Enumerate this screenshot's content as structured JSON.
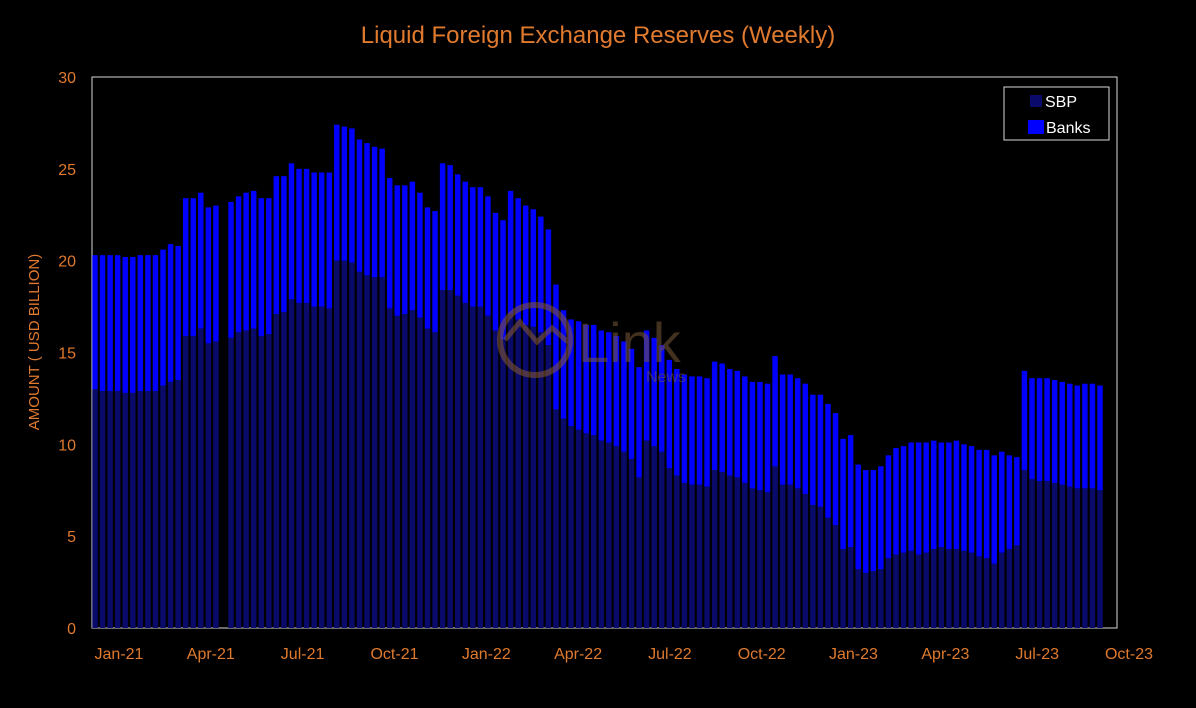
{
  "chart_data": {
    "type": "bar",
    "stacked": true,
    "title": "Liquid Foreign Exchange Reserves (Weekly)",
    "xlabel": "",
    "ylabel": "AMOUNT ( USD BILLION)",
    "ylim": [
      0,
      30
    ],
    "yticks": [
      "0",
      "5",
      "10",
      "15",
      "20",
      "25",
      "30"
    ],
    "xticks": [
      "Jan-21",
      "Apr-21",
      "Jul-21",
      "Oct-21",
      "Jan-22",
      "Apr-22",
      "Jul-22",
      "Oct-22",
      "Jan-23",
      "Apr-23",
      "Jul-23",
      "Oct-23"
    ],
    "grid": false,
    "legend_position": "top-right",
    "series": [
      {
        "name": "SBP",
        "color": "#0a0a6b",
        "values": [
          13.0,
          12.9,
          12.9,
          12.9,
          12.8,
          12.8,
          12.9,
          12.9,
          12.9,
          13.2,
          13.4,
          13.5,
          15.9,
          15.9,
          16.3,
          15.5,
          15.6,
          0,
          15.8,
          16.1,
          16.2,
          16.3,
          15.9,
          16.0,
          17.1,
          17.2,
          17.9,
          17.7,
          17.7,
          17.5,
          17.5,
          17.4,
          20.0,
          20.0,
          19.9,
          19.4,
          19.2,
          19.1,
          19.1,
          17.4,
          17.0,
          17.1,
          17.3,
          16.9,
          16.3,
          16.1,
          18.4,
          18.4,
          18.1,
          17.7,
          17.5,
          17.5,
          17.0,
          16.2,
          15.7,
          17.1,
          16.8,
          16.5,
          16.4,
          16.1,
          15.4,
          11.9,
          11.4,
          11.0,
          10.8,
          10.6,
          10.5,
          10.2,
          10.1,
          9.9,
          9.6,
          9.2,
          8.2,
          10.2,
          9.9,
          9.6,
          8.7,
          8.3,
          7.9,
          7.8,
          7.8,
          7.7,
          8.6,
          8.5,
          8.3,
          8.2,
          7.9,
          7.6,
          7.5,
          7.4,
          8.8,
          7.8,
          7.8,
          7.6,
          7.3,
          6.7,
          6.6,
          6.0,
          5.6,
          4.3,
          4.4,
          3.2,
          3.0,
          3.1,
          3.2,
          3.8,
          4.0,
          4.1,
          4.2,
          4.0,
          4.1,
          4.3,
          4.4,
          4.3,
          4.3,
          4.2,
          4.1,
          3.9,
          3.8,
          3.5,
          4.1,
          4.3,
          4.5,
          8.6,
          8.1,
          8.0,
          8.0,
          7.9,
          7.8,
          7.7,
          7.6,
          7.6,
          7.6,
          7.5
        ]
      },
      {
        "name": "Banks",
        "color": "#0000ff",
        "values": [
          7.3,
          7.4,
          7.4,
          7.4,
          7.4,
          7.4,
          7.4,
          7.4,
          7.4,
          7.4,
          7.5,
          7.3,
          7.5,
          7.5,
          7.4,
          7.4,
          7.4,
          0,
          7.4,
          7.4,
          7.5,
          7.5,
          7.5,
          7.4,
          7.5,
          7.4,
          7.4,
          7.3,
          7.3,
          7.3,
          7.3,
          7.4,
          7.4,
          7.3,
          7.3,
          7.2,
          7.2,
          7.1,
          7.0,
          7.1,
          7.1,
          7.0,
          7.0,
          6.8,
          6.6,
          6.6,
          6.9,
          6.8,
          6.6,
          6.6,
          6.5,
          6.5,
          6.5,
          6.4,
          6.5,
          6.7,
          6.6,
          6.5,
          6.4,
          6.3,
          6.3,
          6.8,
          5.9,
          5.8,
          5.9,
          5.9,
          6.0,
          6.0,
          6.0,
          6.0,
          6.0,
          6.0,
          6.0,
          6.0,
          5.9,
          5.8,
          5.9,
          5.8,
          5.9,
          5.9,
          5.9,
          5.9,
          5.9,
          5.9,
          5.8,
          5.8,
          5.8,
          5.8,
          5.9,
          5.9,
          6.0,
          6.0,
          6.0,
          6.0,
          6.0,
          6.0,
          6.1,
          6.2,
          6.1,
          6.0,
          6.1,
          5.7,
          5.6,
          5.5,
          5.6,
          5.6,
          5.8,
          5.8,
          5.9,
          6.1,
          6.0,
          5.9,
          5.7,
          5.8,
          5.9,
          5.8,
          5.8,
          5.8,
          5.9,
          5.9,
          5.5,
          5.1,
          4.8,
          5.4,
          5.5,
          5.6,
          5.6,
          5.6,
          5.6,
          5.6,
          5.6,
          5.7,
          5.7,
          5.7
        ]
      }
    ]
  },
  "watermark": {
    "main": "Link",
    "sub": "News"
  }
}
